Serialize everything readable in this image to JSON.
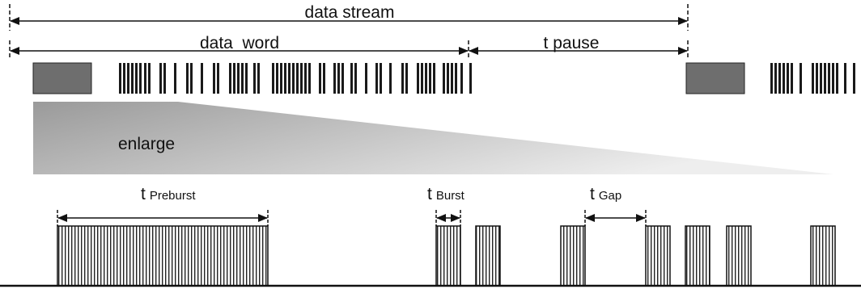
{
  "labels": {
    "data_stream": "data stream",
    "data_word": "data  word",
    "t_pause": "t pause",
    "enlarge": "enlarge",
    "t_preburst_t": "t",
    "t_preburst_sub": "Preburst",
    "t_burst_t": "t",
    "t_burst_sub": "Burst",
    "t_gap_t": "t",
    "t_gap_sub": "Gap"
  },
  "colors": {
    "line": "#111111",
    "block_fill": "#6e6e6e",
    "wedge_dark": "#9a9a9a",
    "wedge_light": "#eeeeee",
    "pulse_stripe": "#222222",
    "background": "#ffffff"
  }
}
